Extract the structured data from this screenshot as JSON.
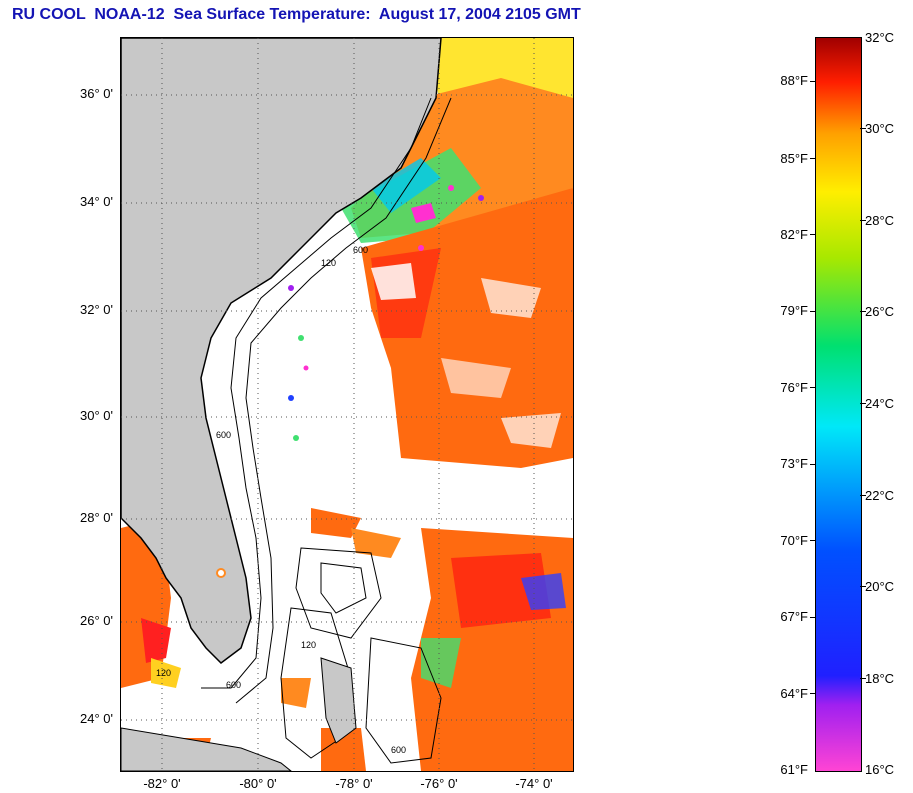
{
  "title": "RU COOL  NOAA-12  Sea Surface Temperature:  August 17, 2004 2105 GMT",
  "map": {
    "lat_labels": [
      "36° 0'",
      "34° 0'",
      "32° 0'",
      "30° 0'",
      "28° 0'",
      "26° 0'",
      "24° 0'"
    ],
    "lon_labels": [
      "-82° 0'",
      "-80° 0'",
      "-78° 0'",
      "-76° 0'",
      "-74° 0'"
    ],
    "contour_labels": [
      "120",
      "600",
      "600",
      "120",
      "600",
      "120",
      "600"
    ],
    "colors": {
      "land": "#c8c8c8",
      "cloud": "#ffffff",
      "warm_water": "#ff6a10",
      "hot_water": "#ff3010",
      "cool_water": "#00d0e0"
    }
  },
  "legend": {
    "fahrenheit": [
      "88°F",
      "85°F",
      "82°F",
      "79°F",
      "76°F",
      "73°F",
      "70°F",
      "67°F",
      "64°F",
      "61°F"
    ],
    "celsius": [
      "32°C",
      "30°C",
      "28°C",
      "26°C",
      "24°C",
      "22°C",
      "20°C",
      "18°C",
      "16°C"
    ]
  }
}
